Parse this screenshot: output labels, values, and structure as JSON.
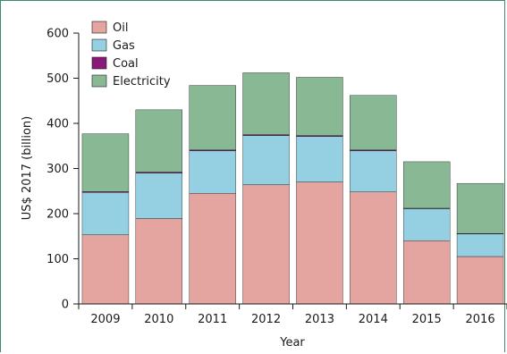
{
  "chart_data": {
    "type": "bar",
    "stacked": true,
    "title": "",
    "xlabel": "Year",
    "ylabel": "US$ 2017 (billion)",
    "ylim": [
      0,
      600
    ],
    "yticks": [
      0,
      100,
      200,
      300,
      400,
      500,
      600
    ],
    "grid": false,
    "legend_position": "top-left",
    "categories": [
      "2009",
      "2010",
      "2011",
      "2012",
      "2013",
      "2014",
      "2015",
      "2016"
    ],
    "series": [
      {
        "name": "Oil",
        "color": "#e4a4a0",
        "values": [
          153,
          189,
          245,
          264,
          270,
          248,
          140,
          105
        ]
      },
      {
        "name": "Gas",
        "color": "#94d0e2",
        "values": [
          94,
          101,
          94,
          109,
          101,
          91,
          71,
          50
        ]
      },
      {
        "name": "Coal",
        "color": "#8a1a7a",
        "values": [
          2,
          2,
          2,
          2,
          2,
          2,
          1,
          1
        ]
      },
      {
        "name": "Electricity",
        "color": "#88b894",
        "values": [
          128,
          138,
          143,
          137,
          129,
          121,
          103,
          111
        ]
      }
    ]
  }
}
